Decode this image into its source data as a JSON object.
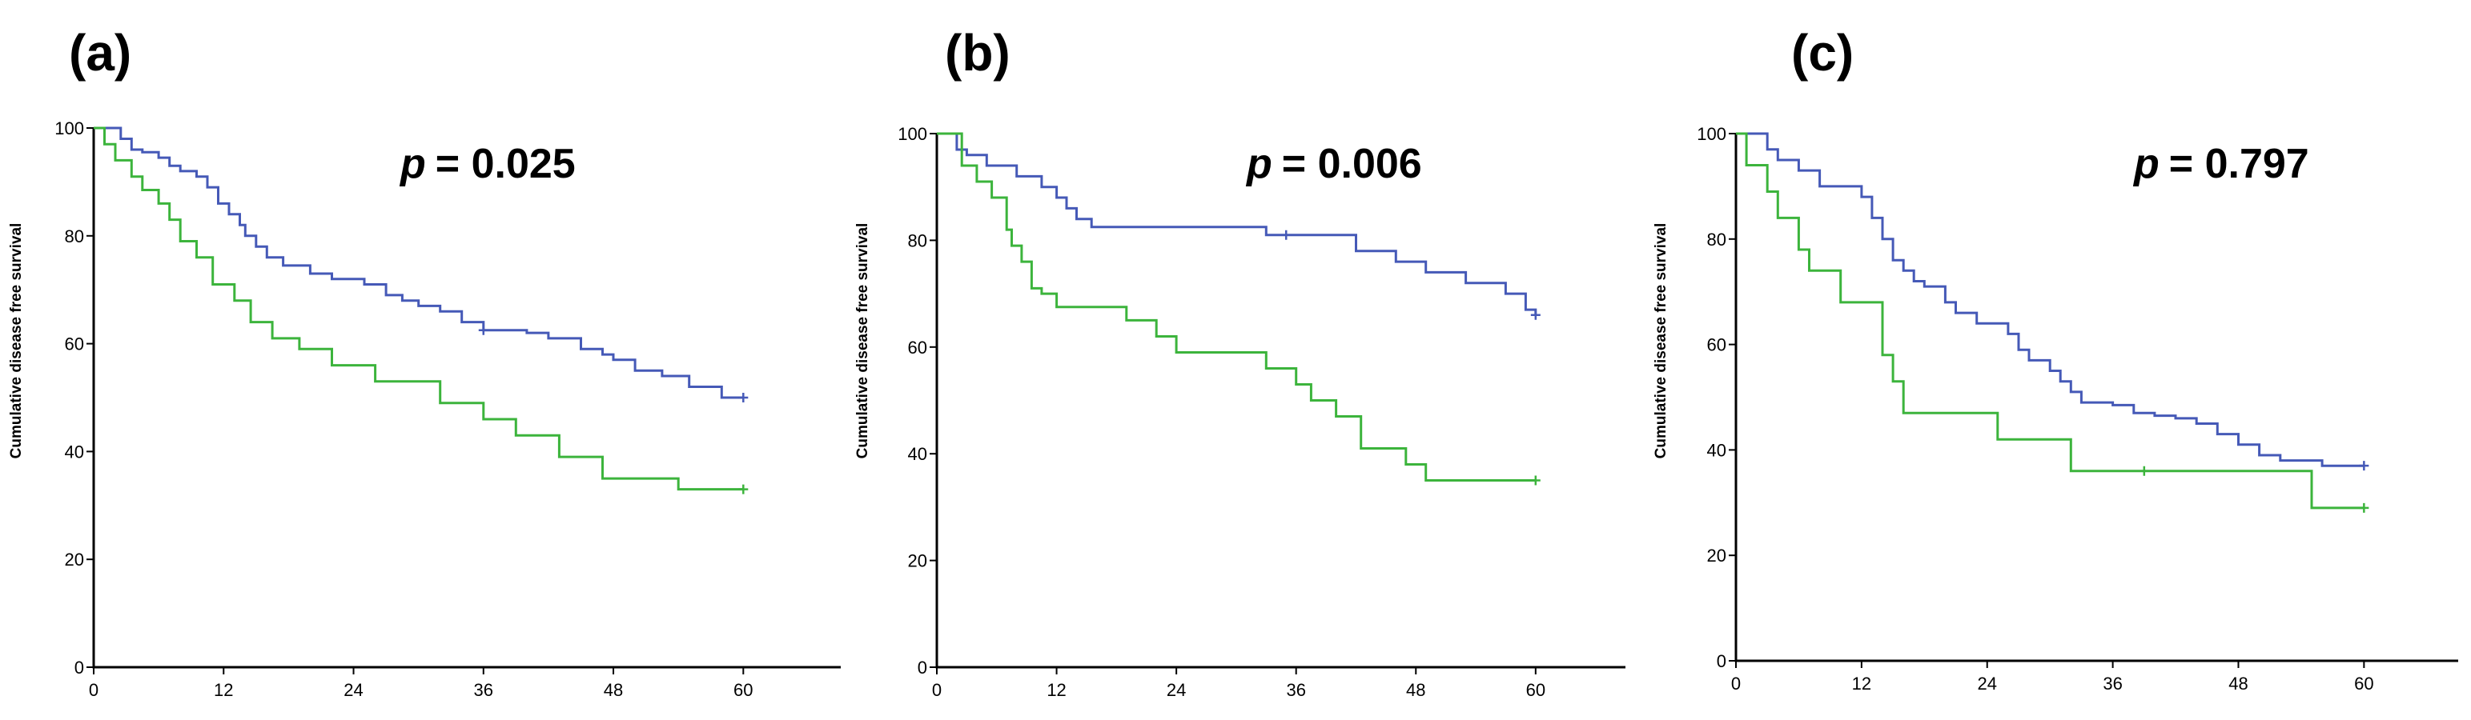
{
  "chart_data": [
    {
      "type": "line",
      "panel_label": "(a)",
      "annotation_p": "p",
      "annotation_value": "= 0.025",
      "ylabel": "Cumulative disease free survival",
      "xlim": [
        0,
        69
      ],
      "ylim": [
        0,
        100
      ],
      "xticks": [
        "0",
        "12",
        "24",
        "36",
        "48",
        "60"
      ],
      "yticks": [
        "0",
        "20",
        "40",
        "60",
        "80",
        "100"
      ],
      "series": [
        {
          "color": "#4559b7",
          "x": [
            0,
            2.5,
            3.5,
            4.5,
            6,
            7,
            8,
            9.5,
            10.5,
            11.5,
            12.5,
            13.5,
            14,
            15,
            16,
            17.5,
            20,
            22,
            25,
            27,
            28.5,
            30,
            32,
            34,
            36,
            40,
            42,
            45,
            47,
            48,
            50,
            52.5,
            55,
            58,
            60
          ],
          "y": [
            100,
            98,
            96,
            95.5,
            94.5,
            93,
            92,
            91,
            89,
            86,
            84,
            82,
            80,
            78,
            76,
            74.5,
            73,
            72,
            71,
            69,
            68,
            67,
            66,
            64,
            62.5,
            62,
            61,
            59,
            58,
            57,
            55,
            54,
            52,
            50,
            50
          ],
          "censor": [
            {
              "x": 36,
              "y": 62.5
            },
            {
              "x": 60,
              "y": 50
            }
          ]
        },
        {
          "color": "#3cb43c",
          "x": [
            0,
            1,
            2,
            3.5,
            4.5,
            6,
            7,
            8,
            9.5,
            11,
            13,
            14.5,
            16.5,
            19,
            22,
            26,
            32,
            36,
            39,
            43,
            47,
            54,
            60
          ],
          "y": [
            100,
            97,
            94,
            91,
            88.5,
            86,
            83,
            79,
            76,
            71,
            68,
            64,
            61,
            59,
            56,
            53,
            49,
            46,
            43,
            39,
            35,
            33,
            33
          ],
          "censor": [
            {
              "x": 60,
              "y": 33
            }
          ]
        }
      ]
    },
    {
      "type": "line",
      "panel_label": "(b)",
      "annotation_p": "p",
      "annotation_value": "= 0.006",
      "ylabel": "Cumulative disease free survival",
      "xlim": [
        0,
        69
      ],
      "ylim": [
        0,
        100
      ],
      "xticks": [
        "0",
        "12",
        "24",
        "36",
        "48",
        "60"
      ],
      "yticks": [
        "0",
        "20",
        "40",
        "60",
        "80",
        "100"
      ],
      "series": [
        {
          "color": "#4559b7",
          "x": [
            0,
            2,
            3,
            5,
            8,
            10.5,
            12,
            13,
            14,
            15.5,
            17,
            22,
            30,
            33,
            40,
            42,
            46,
            49,
            53,
            57,
            59,
            60
          ],
          "y": [
            100,
            97,
            96,
            94,
            92,
            90,
            88,
            86,
            84,
            82.5,
            82.5,
            82.5,
            82.5,
            81,
            81,
            78,
            76,
            74,
            72,
            70,
            67,
            66
          ],
          "censor": [
            {
              "x": 35,
              "y": 81
            },
            {
              "x": 60,
              "y": 66
            }
          ]
        },
        {
          "color": "#3cb43c",
          "x": [
            0,
            2.5,
            4,
            5.5,
            7,
            7.5,
            8.5,
            9.5,
            10.5,
            12,
            19,
            22,
            24,
            33,
            36,
            37.5,
            40,
            42.5,
            47,
            49,
            60
          ],
          "y": [
            100,
            94,
            91,
            88,
            82,
            79,
            76,
            71,
            70,
            67.5,
            65,
            62,
            59,
            56,
            53,
            50,
            47,
            41,
            38,
            35,
            35
          ],
          "censor": [
            {
              "x": 60,
              "y": 35
            }
          ]
        }
      ]
    },
    {
      "type": "line",
      "panel_label": "(c)",
      "annotation_p": "p",
      "annotation_value": "= 0.797",
      "ylabel": "Cumulative disease free survival",
      "xlim": [
        0,
        69
      ],
      "ylim": [
        0,
        100
      ],
      "xticks": [
        "0",
        "12",
        "24",
        "36",
        "48",
        "60"
      ],
      "yticks": [
        "0",
        "20",
        "40",
        "60",
        "80",
        "100"
      ],
      "series": [
        {
          "color": "#4559b7",
          "x": [
            0,
            3,
            4,
            6,
            8,
            12,
            13,
            14,
            15,
            16,
            17,
            18,
            20,
            21,
            23,
            26,
            27,
            28,
            30,
            31,
            32,
            33,
            36,
            38,
            40,
            42,
            44,
            46,
            48,
            50,
            52,
            56,
            60
          ],
          "y": [
            100,
            97,
            95,
            93,
            90,
            88,
            84,
            80,
            76,
            74,
            72,
            71,
            68,
            66,
            64,
            62,
            59,
            57,
            55,
            53,
            51,
            49,
            48.5,
            47,
            46.5,
            46,
            45,
            43,
            41,
            39,
            38,
            37,
            37
          ],
          "censor": [
            {
              "x": 60,
              "y": 37
            }
          ]
        },
        {
          "color": "#3cb43c",
          "x": [
            0,
            1,
            3,
            4,
            6,
            7,
            10,
            14,
            15,
            16,
            19,
            25,
            28,
            32,
            36,
            40,
            55,
            60
          ],
          "y": [
            100,
            94,
            89,
            84,
            78,
            74,
            68,
            58,
            53,
            47,
            47,
            42,
            42,
            36,
            36,
            36,
            29,
            29
          ],
          "censor": [
            {
              "x": 39,
              "y": 36
            },
            {
              "x": 60,
              "y": 29
            }
          ]
        }
      ]
    }
  ]
}
